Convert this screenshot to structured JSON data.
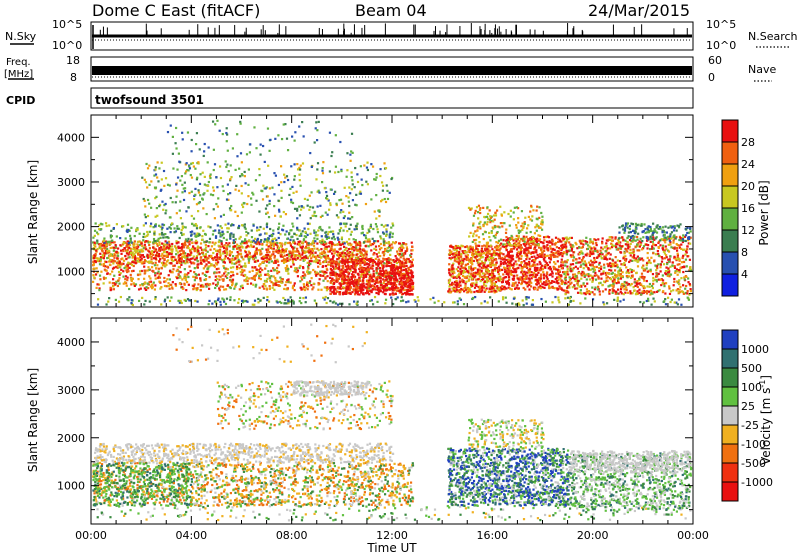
{
  "header": {
    "station": "Dome C East (fitACF)",
    "beam": "Beam 04",
    "date": "24/Mar/2015"
  },
  "strips": {
    "nsky_label": "N.Sky",
    "nsky_ticks": [
      "10^5",
      "10^0"
    ],
    "nsearch_label": "N.Search",
    "nsearch_ticks": [
      "10^5",
      "10^0"
    ],
    "freq_label": "Freq.",
    "freq_unit": "[MHz]",
    "freq_ticks": [
      "18",
      "8"
    ],
    "nave_label": "Nave",
    "nave_ticks": [
      "60",
      "0"
    ],
    "cpid_label": "CPID",
    "cpid_value": "twofsound 3501"
  },
  "chart_data": [
    {
      "type": "heatmap",
      "name": "power",
      "ylabel": "Slant Range [km]",
      "xlabel": "",
      "xlim": [
        0,
        24
      ],
      "ylim": [
        200,
        4500
      ],
      "yticks": [
        "1000",
        "2000",
        "3000",
        "4000"
      ],
      "colorbar": {
        "label": "Power [dB]",
        "ticks": [
          "4",
          "8",
          "12",
          "16",
          "20",
          "24",
          "28"
        ],
        "colors": [
          "#1020e0",
          "#2850b0",
          "#3a7d50",
          "#60b040",
          "#c8c820",
          "#f0a010",
          "#f06010",
          "#e81010"
        ]
      }
    },
    {
      "type": "heatmap",
      "name": "velocity",
      "ylabel": "Slant Range [km]",
      "xlabel": "Time UT",
      "xlim": [
        0,
        24
      ],
      "ylim": [
        200,
        4500
      ],
      "yticks": [
        "1000",
        "2000",
        "3000",
        "4000"
      ],
      "xticks": [
        "00:00",
        "04:00",
        "08:00",
        "12:00",
        "16:00",
        "20:00",
        "00:00"
      ],
      "colorbar": {
        "label": "Velocity [m s",
        "label_sup": "-1",
        "label_end": "]",
        "ticks": [
          "1000",
          "500",
          "100",
          "25",
          "-25",
          "-100",
          "-500",
          "-1000"
        ],
        "colors": [
          "#2040c0",
          "#307070",
          "#3a8a40",
          "#60c040",
          "#c8c8c8",
          "#f0b020",
          "#f07010",
          "#f03010",
          "#e81010"
        ]
      }
    }
  ]
}
